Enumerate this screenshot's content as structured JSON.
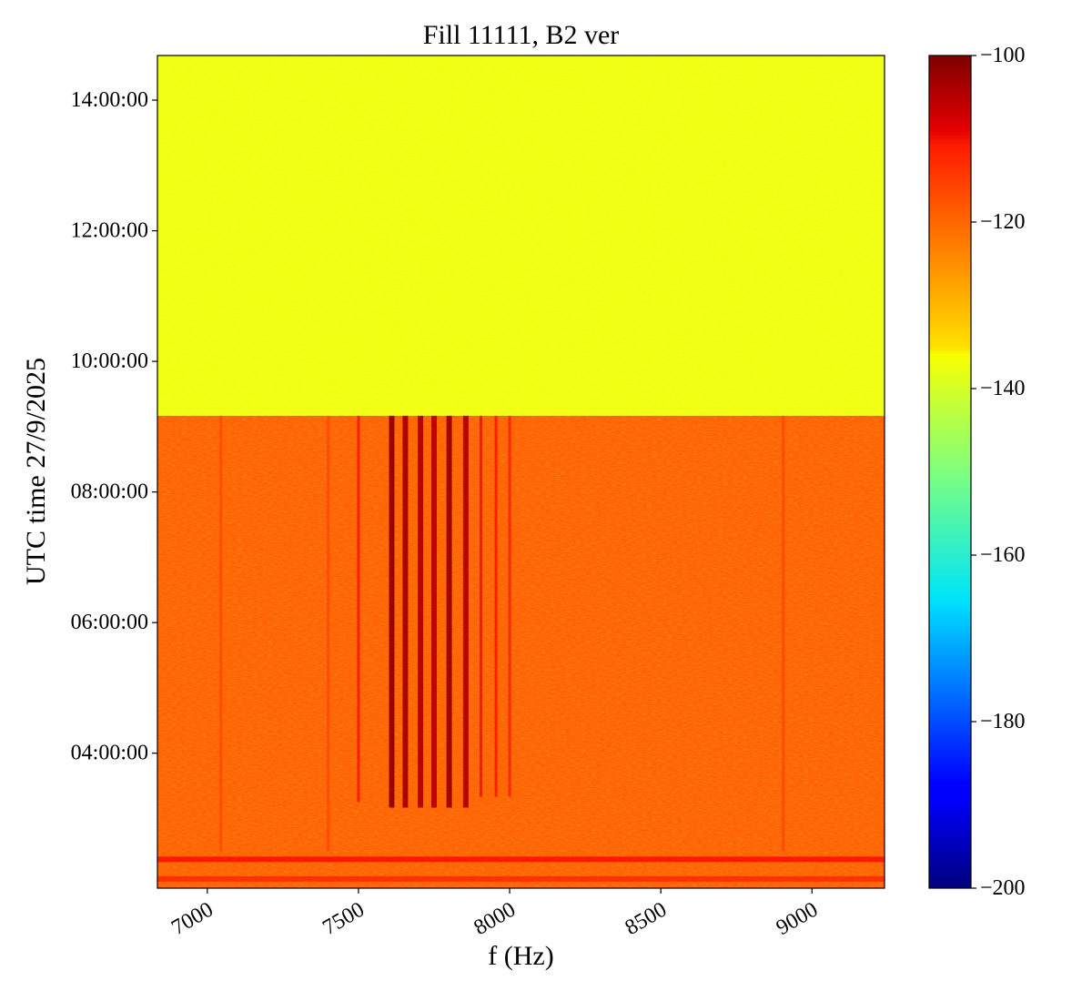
{
  "chart_data": {
    "type": "heatmap",
    "title": "Fill 11111, B2 ver",
    "xlabel": "f (Hz)",
    "ylabel": "UTC time 27/9/2025",
    "xlim": [
      6835,
      9240
    ],
    "ylim": [
      "01:56:00",
      "14:41:00"
    ],
    "x_ticks": [
      7000,
      7500,
      8000,
      8500,
      9000
    ],
    "x_tick_labels": [
      "7000",
      "7500",
      "8000",
      "8500",
      "9000"
    ],
    "y_ticks": [
      "04:00:00",
      "06:00:00",
      "08:00:00",
      "10:00:00",
      "12:00:00",
      "14:00:00"
    ],
    "y_tick_labels": [
      "04:00:00",
      "06:00:00",
      "08:00:00",
      "10:00:00",
      "12:00:00",
      "14:00:00"
    ],
    "colormap": "jet",
    "colorbar": {
      "range": [
        -200,
        -100
      ],
      "ticks": [
        -100,
        -120,
        -140,
        -160,
        -180,
        -200
      ],
      "tick_labels": [
        "−100",
        "−120",
        "−140",
        "−160",
        "−180",
        "−200"
      ]
    },
    "regions": [
      {
        "t_start": "09:10:00",
        "t_end": "14:41:00",
        "level": -139
      },
      {
        "t_start": "01:56:00",
        "t_end": "09:10:00",
        "level": -122
      }
    ],
    "lines": [
      {
        "f": 7500,
        "t_start": "03:15:00",
        "t_end": "09:10:00",
        "level": -112
      },
      {
        "f": 7610,
        "t_start": "03:10:00",
        "t_end": "09:10:00",
        "level": -102
      },
      {
        "f": 7655,
        "t_start": "03:10:00",
        "t_end": "09:10:00",
        "level": -104
      },
      {
        "f": 7705,
        "t_start": "03:10:00",
        "t_end": "09:10:00",
        "level": -105
      },
      {
        "f": 7750,
        "t_start": "03:10:00",
        "t_end": "09:10:00",
        "level": -106
      },
      {
        "f": 7800,
        "t_start": "03:10:00",
        "t_end": "09:10:00",
        "level": -103
      },
      {
        "f": 7855,
        "t_start": "03:10:00",
        "t_end": "09:10:00",
        "level": -105
      },
      {
        "f": 7905,
        "t_start": "03:20:00",
        "t_end": "09:10:00",
        "level": -110
      },
      {
        "f": 7955,
        "t_start": "03:20:00",
        "t_end": "09:10:00",
        "level": -112
      },
      {
        "f": 8000,
        "t_start": "03:20:00",
        "t_end": "09:10:00",
        "level": -114
      },
      {
        "f": 7045,
        "t_start": "02:30:00",
        "t_end": "09:10:00",
        "level": -119
      },
      {
        "f": 7400,
        "t_start": "02:30:00",
        "t_end": "09:10:00",
        "level": -119
      },
      {
        "f": 8905,
        "t_start": "02:30:00",
        "t_end": "09:10:00",
        "level": -119
      }
    ],
    "bands": [
      {
        "t_start": "02:20:00",
        "t_end": "02:25:00",
        "level": -113
      },
      {
        "t_start": "02:02:00",
        "t_end": "02:07:00",
        "level": -116
      }
    ]
  }
}
